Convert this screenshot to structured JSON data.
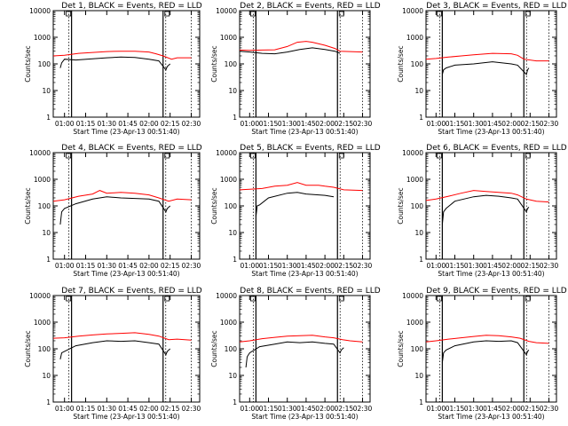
{
  "colors": {
    "events": "#000000",
    "lld": "#ff0000",
    "background": "#ffffff",
    "axes": "#000000"
  },
  "chart_data": [
    {
      "type": "line",
      "title": "Det 1, BLACK = Events, RED = LLD",
      "xlabel": "Start Time (23-Apr-13 00:51:40)",
      "ylabel": "Counts/sec",
      "yscale": "log",
      "ylim": [
        1,
        10000
      ],
      "x_ticks": [
        "01:00",
        "01:15",
        "01:30",
        "01:45",
        "02:00",
        "02:15",
        "02:30"
      ],
      "y_ticks": [
        "1",
        "10",
        "100",
        "1000",
        "10000"
      ],
      "series": [
        {
          "name": "Events",
          "color": "#000000",
          "t": [
            "00:57",
            "00:58",
            "01:00",
            "01:08",
            "01:20",
            "01:30",
            "01:40",
            "01:50",
            "02:00",
            "02:07",
            "02:12",
            "02:13",
            "02:15"
          ],
          "values": [
            70,
            110,
            150,
            140,
            155,
            170,
            180,
            175,
            150,
            130,
            60,
            80,
            100
          ]
        },
        {
          "name": "LLD",
          "color": "#ff0000",
          "t": [
            "00:52",
            "01:00",
            "01:10",
            "01:20",
            "01:30",
            "01:40",
            "01:50",
            "02:00",
            "02:05",
            "02:10",
            "02:16",
            "02:20",
            "02:30"
          ],
          "values": [
            200,
            210,
            250,
            270,
            290,
            300,
            300,
            280,
            240,
            200,
            150,
            170,
            170
          ]
        }
      ]
    },
    {
      "type": "line",
      "title": "Det 2, BLACK = Events, RED = LLD",
      "xlabel": "Start Time (23-Apr-13 00:51:40)",
      "ylabel": "Counts/sec",
      "yscale": "log",
      "ylim": [
        1,
        10000
      ],
      "x_ticks": [
        "01:00",
        "01:15",
        "01:30",
        "01:45",
        "02:00",
        "02:15",
        "02:30"
      ],
      "y_ticks": [
        "1",
        "10",
        "100",
        "1000",
        "10000"
      ],
      "series": [
        {
          "name": "Events",
          "color": "#000000",
          "t": [
            "00:52",
            "01:00",
            "01:10",
            "01:20",
            "01:30",
            "01:40",
            "01:50",
            "02:00",
            "02:08",
            "02:12"
          ],
          "values": [
            300,
            280,
            250,
            240,
            280,
            350,
            400,
            350,
            300,
            250
          ]
        },
        {
          "name": "LLD",
          "color": "#ff0000",
          "t": [
            "00:52",
            "01:00",
            "01:10",
            "01:20",
            "01:30",
            "01:38",
            "01:45",
            "01:50",
            "02:00",
            "02:08",
            "02:12",
            "02:20",
            "02:30"
          ],
          "values": [
            330,
            320,
            330,
            340,
            450,
            650,
            700,
            650,
            500,
            380,
            300,
            290,
            280
          ]
        }
      ]
    },
    {
      "type": "line",
      "title": "Det 3, BLACK = Events, RED = LLD",
      "xlabel": "Start Time (23-Apr-13 00:51:40)",
      "ylabel": "Counts/sec",
      "yscale": "log",
      "ylim": [
        1,
        10000
      ],
      "x_ticks": [
        "01:00",
        "01:15",
        "01:30",
        "01:45",
        "02:00",
        "02:15",
        "02:30"
      ],
      "y_ticks": [
        "1",
        "10",
        "100",
        "1000",
        "10000"
      ],
      "series": [
        {
          "name": "Events",
          "color": "#000000",
          "t": [
            "01:05",
            "01:06",
            "01:08",
            "01:15",
            "01:30",
            "01:45",
            "02:00",
            "02:05",
            "02:12",
            "02:13",
            "02:14"
          ],
          "values": [
            40,
            60,
            70,
            90,
            100,
            120,
            100,
            90,
            40,
            60,
            70
          ]
        },
        {
          "name": "LLD",
          "color": "#ff0000",
          "t": [
            "00:52",
            "01:00",
            "01:10",
            "01:20",
            "01:30",
            "01:45",
            "02:00",
            "02:05",
            "02:10",
            "02:20",
            "02:30"
          ],
          "values": [
            150,
            160,
            180,
            200,
            220,
            250,
            240,
            210,
            150,
            130,
            130
          ]
        }
      ]
    },
    {
      "type": "line",
      "title": "Det 4, BLACK = Events, RED = LLD",
      "xlabel": "Start Time (23-Apr-13 00:51:40)",
      "ylabel": "Counts/sec",
      "yscale": "log",
      "ylim": [
        1,
        10000
      ],
      "x_ticks": [
        "01:00",
        "01:15",
        "01:30",
        "01:45",
        "02:00",
        "02:15",
        "02:30"
      ],
      "y_ticks": [
        "1",
        "10",
        "100",
        "1000",
        "10000"
      ],
      "series": [
        {
          "name": "Events",
          "color": "#000000",
          "t": [
            "00:57",
            "00:58",
            "01:00",
            "01:08",
            "01:20",
            "01:30",
            "01:40",
            "01:50",
            "02:00",
            "02:07",
            "02:12",
            "02:13",
            "02:15"
          ],
          "values": [
            20,
            60,
            80,
            120,
            180,
            220,
            200,
            190,
            180,
            150,
            60,
            80,
            100
          ]
        },
        {
          "name": "LLD",
          "color": "#ff0000",
          "t": [
            "00:52",
            "01:00",
            "01:10",
            "01:20",
            "01:25",
            "01:30",
            "01:40",
            "01:50",
            "02:00",
            "02:07",
            "02:14",
            "02:20",
            "02:30"
          ],
          "values": [
            150,
            170,
            230,
            280,
            380,
            300,
            320,
            300,
            260,
            200,
            150,
            180,
            170
          ]
        }
      ]
    },
    {
      "type": "line",
      "title": "Det 5, BLACK = Events, RED = LLD",
      "xlabel": "Start Time (23-Apr-13 00:51:40)",
      "ylabel": "Counts/sec",
      "yscale": "log",
      "ylim": [
        1,
        10000
      ],
      "x_ticks": [
        "01:00",
        "01:15",
        "01:30",
        "01:45",
        "02:00",
        "02:15",
        "02:30"
      ],
      "y_ticks": [
        "1",
        "10",
        "100",
        "1000",
        "10000"
      ],
      "series": [
        {
          "name": "Events",
          "color": "#000000",
          "t": [
            "01:05",
            "01:06",
            "01:08",
            "01:15",
            "01:30",
            "01:38",
            "01:45",
            "02:00",
            "02:07"
          ],
          "values": [
            40,
            100,
            110,
            200,
            300,
            320,
            280,
            250,
            220
          ]
        },
        {
          "name": "LLD",
          "color": "#ff0000",
          "t": [
            "00:52",
            "01:00",
            "01:10",
            "01:20",
            "01:30",
            "01:38",
            "01:45",
            "01:55",
            "02:00",
            "02:07",
            "02:15",
            "02:30"
          ],
          "values": [
            400,
            420,
            450,
            550,
            600,
            750,
            600,
            600,
            550,
            500,
            400,
            380
          ]
        }
      ]
    },
    {
      "type": "line",
      "title": "Det 6, BLACK = Events, RED = LLD",
      "xlabel": "Start Time (23-Apr-13 00:51:40)",
      "ylabel": "Counts/sec",
      "yscale": "log",
      "ylim": [
        1,
        10000
      ],
      "x_ticks": [
        "01:00",
        "01:15",
        "01:30",
        "01:45",
        "02:00",
        "02:15",
        "02:30"
      ],
      "y_ticks": [
        "1",
        "10",
        "100",
        "1000",
        "10000"
      ],
      "series": [
        {
          "name": "Events",
          "color": "#000000",
          "t": [
            "01:05",
            "01:06",
            "01:08",
            "01:15",
            "01:30",
            "01:40",
            "01:50",
            "02:00",
            "02:05",
            "02:12",
            "02:13",
            "02:14"
          ],
          "values": [
            20,
            60,
            80,
            150,
            220,
            250,
            230,
            200,
            180,
            60,
            80,
            90
          ]
        },
        {
          "name": "LLD",
          "color": "#ff0000",
          "t": [
            "00:52",
            "01:00",
            "01:10",
            "01:20",
            "01:30",
            "01:40",
            "01:50",
            "02:00",
            "02:05",
            "02:12",
            "02:20",
            "02:30"
          ],
          "values": [
            160,
            180,
            230,
            300,
            380,
            350,
            320,
            300,
            260,
            180,
            150,
            140
          ]
        }
      ]
    },
    {
      "type": "line",
      "title": "Det 7, BLACK = Events, RED = LLD",
      "xlabel": "Start Time (23-Apr-13 00:51:40)",
      "ylabel": "Counts/sec",
      "yscale": "log",
      "ylim": [
        1,
        10000
      ],
      "x_ticks": [
        "01:00",
        "01:15",
        "01:30",
        "01:45",
        "02:00",
        "02:15",
        "02:30"
      ],
      "y_ticks": [
        "1",
        "10",
        "100",
        "1000",
        "10000"
      ],
      "series": [
        {
          "name": "Events",
          "color": "#000000",
          "t": [
            "00:57",
            "00:58",
            "01:00",
            "01:08",
            "01:20",
            "01:30",
            "01:40",
            "01:50",
            "02:00",
            "02:07",
            "02:12",
            "02:13",
            "02:15"
          ],
          "values": [
            40,
            70,
            80,
            130,
            170,
            200,
            190,
            200,
            170,
            150,
            60,
            80,
            100
          ]
        },
        {
          "name": "LLD",
          "color": "#ff0000",
          "t": [
            "00:52",
            "01:00",
            "01:10",
            "01:20",
            "01:30",
            "01:40",
            "01:50",
            "02:00",
            "02:07",
            "02:14",
            "02:20",
            "02:30"
          ],
          "values": [
            250,
            260,
            300,
            330,
            360,
            380,
            400,
            350,
            300,
            220,
            230,
            210
          ]
        }
      ]
    },
    {
      "type": "line",
      "title": "Det 8, BLACK = Events, RED = LLD",
      "xlabel": "Start Time (23-Apr-13 00:51:40)",
      "ylabel": "Counts/sec",
      "yscale": "log",
      "ylim": [
        1,
        10000
      ],
      "x_ticks": [
        "01:00",
        "01:15",
        "01:30",
        "01:45",
        "02:00",
        "02:15",
        "02:30"
      ],
      "y_ticks": [
        "1",
        "10",
        "100",
        "1000",
        "10000"
      ],
      "series": [
        {
          "name": "Events",
          "color": "#000000",
          "t": [
            "00:57",
            "00:58",
            "01:00",
            "01:08",
            "01:20",
            "01:30",
            "01:40",
            "01:50",
            "02:00",
            "02:07",
            "02:12",
            "02:13",
            "02:15"
          ],
          "values": [
            20,
            50,
            70,
            120,
            150,
            180,
            170,
            180,
            160,
            150,
            70,
            90,
            110
          ]
        },
        {
          "name": "LLD",
          "color": "#ff0000",
          "t": [
            "00:52",
            "01:00",
            "01:10",
            "01:20",
            "01:30",
            "01:40",
            "01:50",
            "02:00",
            "02:07",
            "02:14",
            "02:20",
            "02:30"
          ],
          "values": [
            180,
            200,
            240,
            270,
            300,
            310,
            320,
            280,
            260,
            220,
            200,
            180
          ]
        }
      ]
    },
    {
      "type": "line",
      "title": "Det 9, BLACK = Events, RED = LLD",
      "xlabel": "Start Time (23-Apr-13 00:51:40)",
      "ylabel": "Counts/sec",
      "yscale": "log",
      "ylim": [
        1,
        10000
      ],
      "x_ticks": [
        "01:00",
        "01:15",
        "01:30",
        "01:45",
        "02:00",
        "02:15",
        "02:30"
      ],
      "y_ticks": [
        "1",
        "10",
        "100",
        "1000",
        "10000"
      ],
      "series": [
        {
          "name": "Events",
          "color": "#000000",
          "t": [
            "01:05",
            "01:06",
            "01:08",
            "01:15",
            "01:30",
            "01:40",
            "01:50",
            "02:00",
            "02:05",
            "02:12",
            "02:13",
            "02:14"
          ],
          "values": [
            30,
            70,
            90,
            130,
            180,
            200,
            190,
            200,
            170,
            60,
            80,
            90
          ]
        },
        {
          "name": "LLD",
          "color": "#ff0000",
          "t": [
            "00:52",
            "01:00",
            "01:10",
            "01:20",
            "01:30",
            "01:40",
            "01:50",
            "02:00",
            "02:07",
            "02:14",
            "02:20",
            "02:30"
          ],
          "values": [
            180,
            200,
            230,
            260,
            290,
            320,
            310,
            280,
            250,
            190,
            170,
            160
          ]
        }
      ]
    }
  ]
}
